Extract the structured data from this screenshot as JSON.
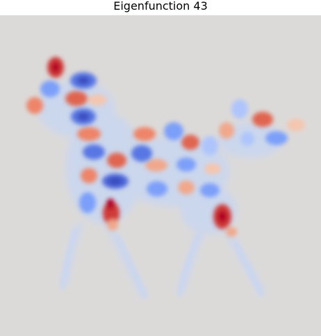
{
  "title": "Eigenfunction 43",
  "colormap": {
    "name": "coolwarm",
    "background": "#dcdad9",
    "positive_peak": "#b40426",
    "positive_mid": "#ee8468",
    "negative_peak": "#3b4cc0",
    "negative_mid": "#7b9ff9",
    "faint_blue": "#c6d6f4"
  },
  "image_content": "horse-silhouette-mode-heatmap"
}
